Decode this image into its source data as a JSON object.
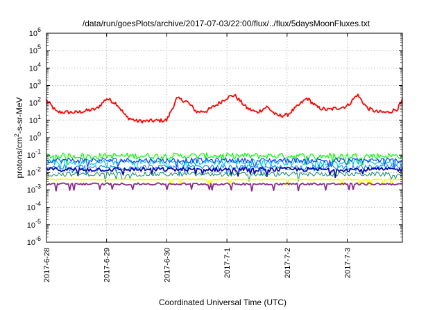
{
  "chart_data": {
    "type": "line",
    "title": "/data/run/goesPlots/archive/2017-07-03/22:00/flux/../flux/5daysMoonFluxes.txt",
    "xlabel": "Coordinated Universal Time (UTC)",
    "ylabel": {
      "prefix": "protons/cm",
      "sup": "2",
      "suffix": "-s-sr-MeV"
    },
    "y_scale": "log",
    "ylim": [
      1e-06,
      1000000.0
    ],
    "y_ticks": [
      {
        "value": 1e-06,
        "base": "10",
        "exp": "-6"
      },
      {
        "value": 1e-05,
        "base": "10",
        "exp": "-5"
      },
      {
        "value": 0.0001,
        "base": "10",
        "exp": "-4"
      },
      {
        "value": 0.001,
        "base": "10",
        "exp": "-3"
      },
      {
        "value": 0.01,
        "base": "10",
        "exp": "-2"
      },
      {
        "value": 0.1,
        "base": "10",
        "exp": "-1"
      },
      {
        "value": 1.0,
        "base": "10",
        "exp": "0"
      },
      {
        "value": 10.0,
        "base": "10",
        "exp": "1"
      },
      {
        "value": 100.0,
        "base": "10",
        "exp": "2"
      },
      {
        "value": 1000.0,
        "base": "10",
        "exp": "3"
      },
      {
        "value": 10000.0,
        "base": "10",
        "exp": "4"
      },
      {
        "value": 100000.0,
        "base": "10",
        "exp": "5"
      },
      {
        "value": 1000000.0,
        "base": "10",
        "exp": "6"
      }
    ],
    "xlim": [
      "2017-06-28",
      "2017-07-03 22:00"
    ],
    "x_ticks": [
      "2017-6-28",
      "2017-6-29",
      "2017-6-30",
      "2017-7-1",
      "2017-7-2",
      "2017-7-3"
    ],
    "grid": true,
    "series": [
      {
        "color": "#ff0000",
        "width": 1.8,
        "x": [
          "2017-06-28 00:00",
          "2017-06-28 04:00",
          "2017-06-28 12:00",
          "2017-06-28 20:00",
          "2017-06-29 00:00",
          "2017-06-29 04:00",
          "2017-06-29 08:00",
          "2017-06-29 12:00",
          "2017-06-29 16:00",
          "2017-06-30 00:00",
          "2017-06-30 04:00",
          "2017-06-30 08:00",
          "2017-06-30 12:00",
          "2017-06-30 16:00",
          "2017-06-30 20:00",
          "2017-07-01 00:00",
          "2017-07-01 03:00",
          "2017-07-01 08:00",
          "2017-07-01 12:00",
          "2017-07-01 16:00",
          "2017-07-01 20:00",
          "2017-07-02 00:00",
          "2017-07-02 04:00",
          "2017-07-02 08:00",
          "2017-07-02 12:00",
          "2017-07-02 16:00",
          "2017-07-02 20:00",
          "2017-07-03 00:00",
          "2017-07-03 04:00",
          "2017-07-03 08:00",
          "2017-07-03 12:00",
          "2017-07-03 16:00",
          "2017-07-03 20:00",
          "2017-07-03 22:00"
        ],
        "y": [
          150,
          30,
          28,
          45,
          180,
          90,
          15,
          9,
          9,
          10,
          180,
          120,
          30,
          35,
          80,
          200,
          280,
          50,
          28,
          60,
          18,
          20,
          60,
          190,
          55,
          40,
          50,
          65,
          300,
          50,
          30,
          28,
          45,
          140
        ]
      },
      {
        "color": "#00ff00",
        "width": 1.2,
        "base": 0.09,
        "noise": 0.35
      },
      {
        "color": "#00ccdd",
        "width": 1.2,
        "base": 0.04,
        "noise": 0.35
      },
      {
        "color": "#1a3cff",
        "width": 1.2,
        "base": 0.05,
        "noise": 0.3
      },
      {
        "color": "#1f8fff",
        "width": 1.2,
        "base": 0.02,
        "noise": 0.3
      },
      {
        "color": "#0a0aa8",
        "width": 1.8,
        "base": 0.015,
        "noise": 0.25
      },
      {
        "color": "#0a8a6a",
        "width": 1.0,
        "base": 0.008,
        "noise": 0.25
      },
      {
        "color": "#ffff00",
        "width": 1.6,
        "base": 0.004,
        "noise": 0.06
      },
      {
        "color": "#8a2a8a",
        "width": 1.8,
        "base": 0.0022,
        "noise": 0.12
      }
    ]
  }
}
